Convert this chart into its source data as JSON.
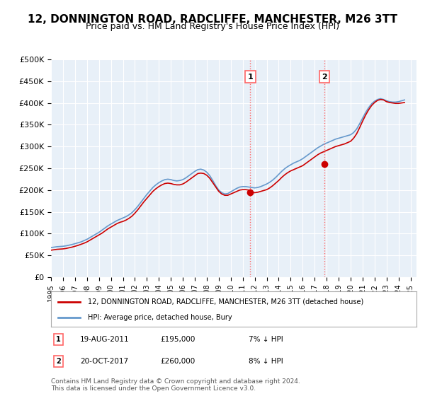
{
  "title": "12, DONNINGTON ROAD, RADCLIFFE, MANCHESTER, M26 3TT",
  "subtitle": "Price paid vs. HM Land Registry's House Price Index (HPI)",
  "title_fontsize": 11,
  "subtitle_fontsize": 9,
  "background_color": "#ffffff",
  "plot_bg_color": "#e8f0f8",
  "grid_color": "#ffffff",
  "ylim": [
    0,
    500000
  ],
  "yticks": [
    0,
    50000,
    100000,
    150000,
    200000,
    250000,
    300000,
    350000,
    400000,
    450000,
    500000
  ],
  "ytick_labels": [
    "£0",
    "£50K",
    "£100K",
    "£150K",
    "£200K",
    "£250K",
    "£300K",
    "£350K",
    "£400K",
    "£450K",
    "£500K"
  ],
  "xlim_start": 1995.0,
  "xlim_end": 2025.5,
  "xtick_years": [
    1995,
    1996,
    1997,
    1998,
    1999,
    2000,
    2001,
    2002,
    2003,
    2004,
    2005,
    2006,
    2007,
    2008,
    2009,
    2010,
    2011,
    2012,
    2013,
    2014,
    2015,
    2016,
    2017,
    2018,
    2019,
    2020,
    2021,
    2022,
    2023,
    2024,
    2025
  ],
  "sale1_x": 2011.63,
  "sale1_y": 195000,
  "sale2_x": 2017.8,
  "sale2_y": 260000,
  "sale1_label": "1",
  "sale2_label": "2",
  "vline_color": "#ff6666",
  "vline_style": ":",
  "sale_marker_color": "#cc0000",
  "hpi_line_color": "#6699cc",
  "price_line_color": "#cc0000",
  "legend_label_price": "12, DONNINGTON ROAD, RADCLIFFE, MANCHESTER, M26 3TT (detached house)",
  "legend_label_hpi": "HPI: Average price, detached house, Bury",
  "note1_label": "1",
  "note1_date": "19-AUG-2011",
  "note1_price": "£195,000",
  "note1_pct": "7% ↓ HPI",
  "note2_label": "2",
  "note2_date": "20-OCT-2017",
  "note2_price": "£260,000",
  "note2_pct": "8% ↓ HPI",
  "copyright_text": "Contains HM Land Registry data © Crown copyright and database right 2024.\nThis data is licensed under the Open Government Licence v3.0.",
  "hpi_data_x": [
    1995.0,
    1995.25,
    1995.5,
    1995.75,
    1996.0,
    1996.25,
    1996.5,
    1996.75,
    1997.0,
    1997.25,
    1997.5,
    1997.75,
    1998.0,
    1998.25,
    1998.5,
    1998.75,
    1999.0,
    1999.25,
    1999.5,
    1999.75,
    2000.0,
    2000.25,
    2000.5,
    2000.75,
    2001.0,
    2001.25,
    2001.5,
    2001.75,
    2002.0,
    2002.25,
    2002.5,
    2002.75,
    2003.0,
    2003.25,
    2003.5,
    2003.75,
    2004.0,
    2004.25,
    2004.5,
    2004.75,
    2005.0,
    2005.25,
    2005.5,
    2005.75,
    2006.0,
    2006.25,
    2006.5,
    2006.75,
    2007.0,
    2007.25,
    2007.5,
    2007.75,
    2008.0,
    2008.25,
    2008.5,
    2008.75,
    2009.0,
    2009.25,
    2009.5,
    2009.75,
    2010.0,
    2010.25,
    2010.5,
    2010.75,
    2011.0,
    2011.25,
    2011.5,
    2011.75,
    2012.0,
    2012.25,
    2012.5,
    2012.75,
    2013.0,
    2013.25,
    2013.5,
    2013.75,
    2014.0,
    2014.25,
    2014.5,
    2014.75,
    2015.0,
    2015.25,
    2015.5,
    2015.75,
    2016.0,
    2016.25,
    2016.5,
    2016.75,
    2017.0,
    2017.25,
    2017.5,
    2017.75,
    2018.0,
    2018.25,
    2018.5,
    2018.75,
    2019.0,
    2019.25,
    2019.5,
    2019.75,
    2020.0,
    2020.25,
    2020.5,
    2020.75,
    2021.0,
    2021.25,
    2021.5,
    2021.75,
    2022.0,
    2022.25,
    2022.5,
    2022.75,
    2023.0,
    2023.25,
    2023.5,
    2023.75,
    2024.0,
    2024.25,
    2024.5
  ],
  "hpi_data_y": [
    68000,
    69000,
    70000,
    70500,
    71000,
    72000,
    73500,
    75000,
    77000,
    79000,
    81000,
    84000,
    87000,
    91000,
    95000,
    99000,
    103000,
    108000,
    113000,
    118000,
    122000,
    126000,
    130000,
    133000,
    136000,
    139000,
    143000,
    148000,
    155000,
    163000,
    172000,
    181000,
    190000,
    198000,
    206000,
    212000,
    217000,
    221000,
    224000,
    225000,
    224000,
    222000,
    221000,
    222000,
    224000,
    228000,
    233000,
    238000,
    243000,
    247000,
    248000,
    246000,
    241000,
    233000,
    222000,
    210000,
    200000,
    194000,
    191000,
    192000,
    196000,
    200000,
    204000,
    207000,
    208000,
    208000,
    207000,
    206000,
    205000,
    206000,
    208000,
    211000,
    214000,
    218000,
    223000,
    229000,
    236000,
    243000,
    249000,
    254000,
    258000,
    262000,
    265000,
    268000,
    272000,
    277000,
    282000,
    287000,
    292000,
    297000,
    301000,
    305000,
    308000,
    311000,
    314000,
    317000,
    319000,
    321000,
    323000,
    325000,
    327000,
    332000,
    340000,
    352000,
    365000,
    378000,
    389000,
    398000,
    404000,
    408000,
    410000,
    408000,
    405000,
    403000,
    402000,
    402000,
    403000,
    405000,
    407000
  ],
  "price_data_x": [
    1995.0,
    1995.25,
    1995.5,
    1995.75,
    1996.0,
    1996.25,
    1996.5,
    1996.75,
    1997.0,
    1997.25,
    1997.5,
    1997.75,
    1998.0,
    1998.25,
    1998.5,
    1998.75,
    1999.0,
    1999.25,
    1999.5,
    1999.75,
    2000.0,
    2000.25,
    2000.5,
    2000.75,
    2001.0,
    2001.25,
    2001.5,
    2001.75,
    2002.0,
    2002.25,
    2002.5,
    2002.75,
    2003.0,
    2003.25,
    2003.5,
    2003.75,
    2004.0,
    2004.25,
    2004.5,
    2004.75,
    2005.0,
    2005.25,
    2005.5,
    2005.75,
    2006.0,
    2006.25,
    2006.5,
    2006.75,
    2007.0,
    2007.25,
    2007.5,
    2007.75,
    2008.0,
    2008.25,
    2008.5,
    2008.75,
    2009.0,
    2009.25,
    2009.5,
    2009.75,
    2010.0,
    2010.25,
    2010.5,
    2010.75,
    2011.0,
    2011.25,
    2011.5,
    2011.75,
    2012.0,
    2012.25,
    2012.5,
    2012.75,
    2013.0,
    2013.25,
    2013.5,
    2013.75,
    2014.0,
    2014.25,
    2014.5,
    2014.75,
    2015.0,
    2015.25,
    2015.5,
    2015.75,
    2016.0,
    2016.25,
    2016.5,
    2016.75,
    2017.0,
    2017.25,
    2017.5,
    2017.75,
    2018.0,
    2018.25,
    2018.5,
    2018.75,
    2019.0,
    2019.25,
    2019.5,
    2019.75,
    2020.0,
    2020.25,
    2020.5,
    2020.75,
    2021.0,
    2021.25,
    2021.5,
    2021.75,
    2022.0,
    2022.25,
    2022.5,
    2022.75,
    2023.0,
    2023.25,
    2023.5,
    2023.75,
    2024.0,
    2024.25,
    2024.5
  ],
  "price_data_y": [
    62000,
    63000,
    64000,
    64500,
    65000,
    66000,
    67500,
    69000,
    71000,
    73000,
    75500,
    78000,
    81000,
    85000,
    89000,
    93000,
    97000,
    101000,
    106000,
    111000,
    115000,
    119000,
    123000,
    126000,
    128000,
    131000,
    135000,
    140000,
    147000,
    155000,
    164000,
    173000,
    181000,
    189000,
    197000,
    203000,
    208000,
    212000,
    215000,
    216000,
    215000,
    213000,
    212000,
    212000,
    214000,
    218000,
    223000,
    228000,
    233000,
    238000,
    239000,
    238000,
    234000,
    227000,
    217000,
    207000,
    197000,
    191000,
    188000,
    188000,
    191000,
    194000,
    197000,
    200000,
    201000,
    201000,
    200000,
    195000,
    194000,
    195000,
    197000,
    199000,
    201000,
    205000,
    210000,
    216000,
    222000,
    229000,
    235000,
    240000,
    244000,
    247000,
    250000,
    253000,
    256000,
    261000,
    266000,
    271000,
    276000,
    281000,
    285000,
    288000,
    291000,
    294000,
    297000,
    300000,
    302000,
    304000,
    306000,
    309000,
    312000,
    319000,
    329000,
    343000,
    358000,
    372000,
    384000,
    394000,
    401000,
    406000,
    408000,
    407000,
    403000,
    401000,
    400000,
    399000,
    399000,
    400000,
    401000
  ]
}
